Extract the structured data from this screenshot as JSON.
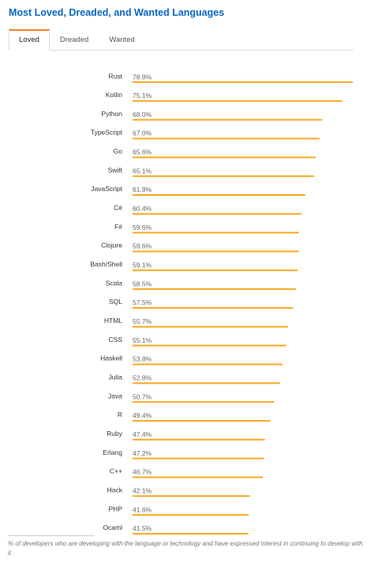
{
  "tabs": [
    "Loved",
    "Dreaded",
    "Wanted"
  ],
  "chart_data": {
    "type": "bar",
    "title": "Most Loved, Dreaded, and Wanted Languages",
    "categories": [
      "Rust",
      "Kotlin",
      "Python",
      "TypeScript",
      "Go",
      "Swift",
      "JavaScript",
      "C#",
      "F#",
      "Clojure",
      "Bash/Shell",
      "Scala",
      "SQL",
      "HTML",
      "CSS",
      "Haskell",
      "Julia",
      "Java",
      "R",
      "Ruby",
      "Erlang",
      "C++",
      "Hack",
      "PHP",
      "Ocaml"
    ],
    "values": [
      78.9,
      75.1,
      68.0,
      67.0,
      65.6,
      65.1,
      61.9,
      60.4,
      59.6,
      59.6,
      59.1,
      58.5,
      57.5,
      55.7,
      55.1,
      53.8,
      52.8,
      50.7,
      49.4,
      47.4,
      47.2,
      46.7,
      42.1,
      41.6,
      41.5
    ],
    "value_labels": [
      "78.9%",
      "75.1%",
      "68.0%",
      "67.0%",
      "65.6%",
      "65.1%",
      "61.9%",
      "60.4%",
      "59.6%",
      "59.6%",
      "59.1%",
      "58.5%",
      "57.5%",
      "55.7%",
      "55.1%",
      "53.8%",
      "52.8%",
      "50.7%",
      "49.4%",
      "47.4%",
      "47.2%",
      "46.7%",
      "42.1%",
      "41.6%",
      "41.5%"
    ],
    "color": "#f7a823"
  },
  "footnote": "% of developers who are developing with the language or technology and have expressed interest in continuing to develop with it"
}
